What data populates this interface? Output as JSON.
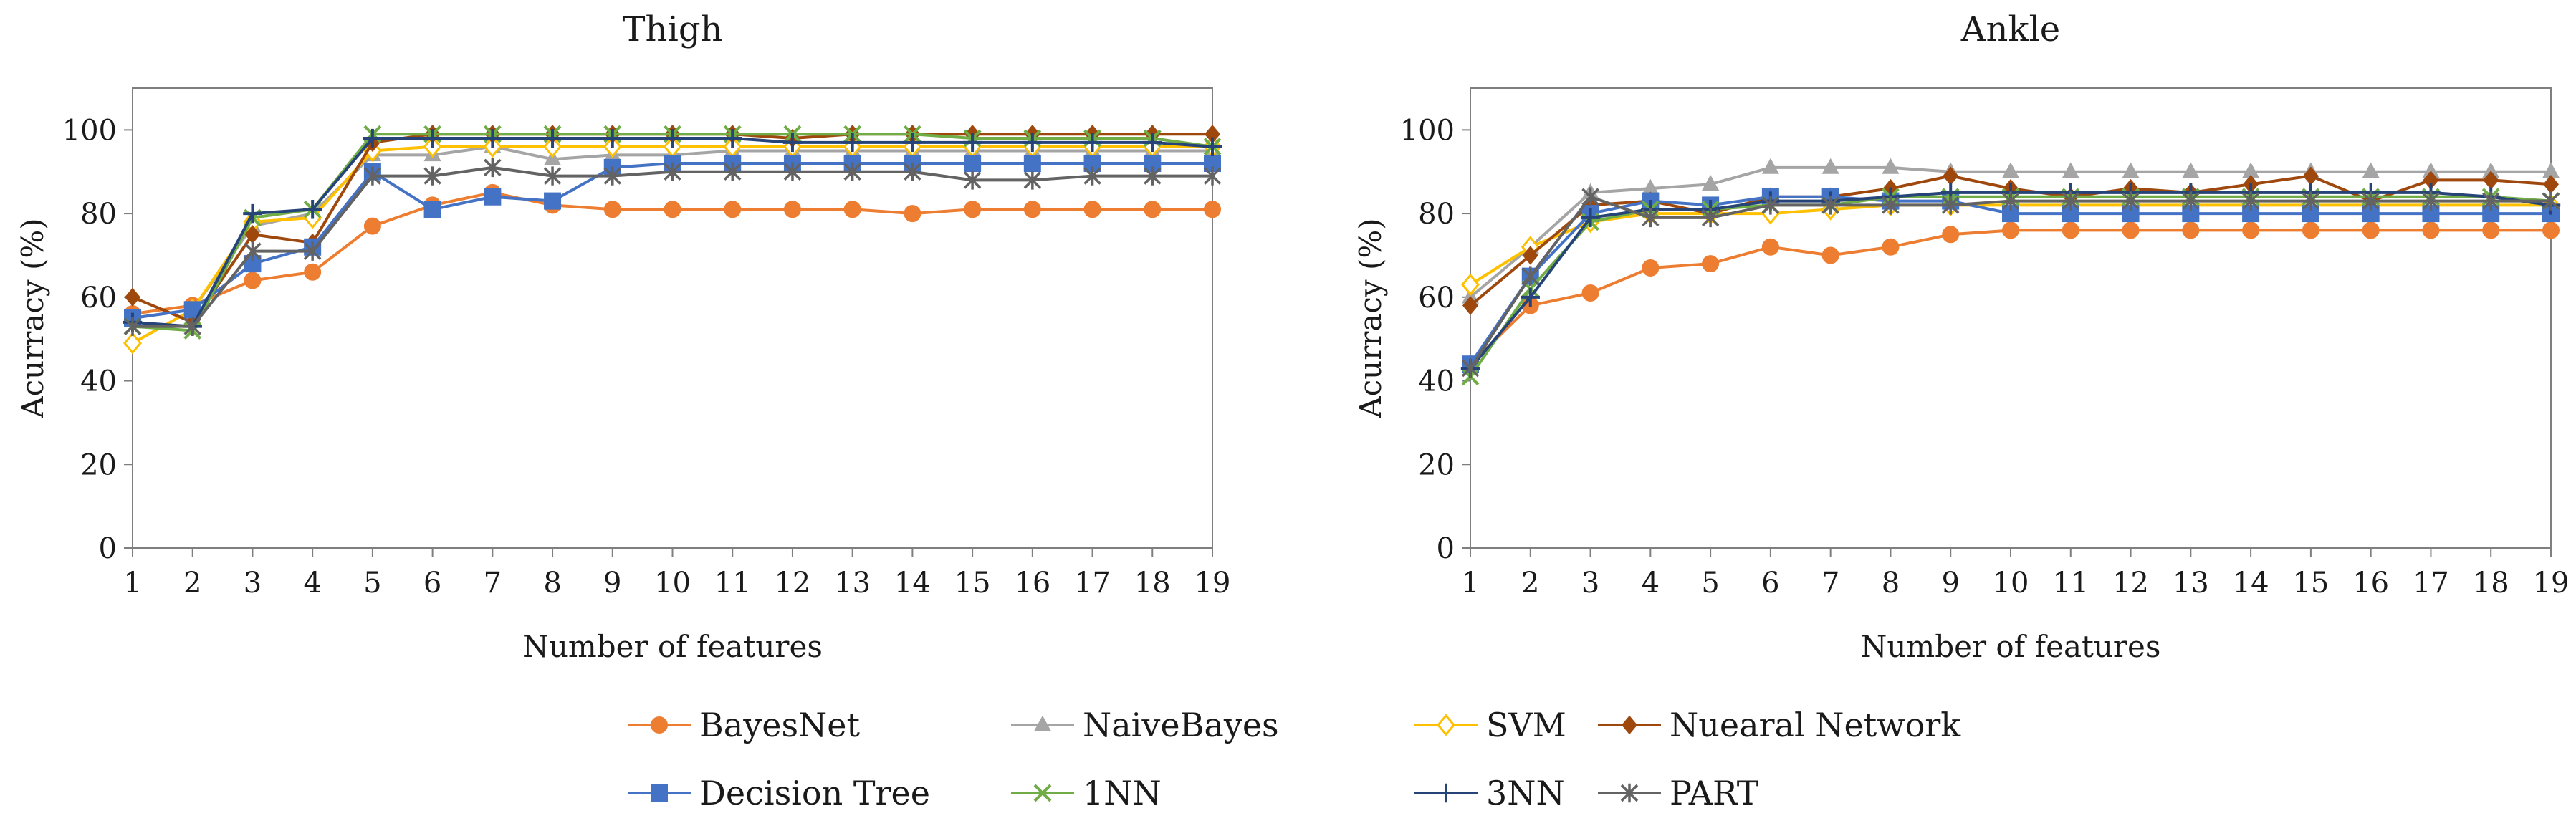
{
  "chart_data": [
    {
      "type": "line",
      "title": "Thigh",
      "xlabel": "Number of features",
      "ylabel": "Acurracy (%)",
      "x": [
        1,
        2,
        3,
        4,
        5,
        6,
        7,
        8,
        9,
        10,
        11,
        12,
        13,
        14,
        15,
        16,
        17,
        18,
        19
      ],
      "xlim": [
        1,
        19
      ],
      "ylim": [
        0,
        110
      ],
      "yticks": [
        0,
        20,
        40,
        60,
        80,
        100
      ],
      "series": [
        {
          "name": "BayesNet",
          "values": [
            56,
            58,
            64,
            66,
            77,
            82,
            85,
            82,
            81,
            81,
            81,
            81,
            81,
            80,
            81,
            81,
            81,
            81,
            81
          ]
        },
        {
          "name": "NaiveBayes",
          "values": [
            55,
            57,
            77,
            80,
            94,
            94,
            96,
            93,
            94,
            94,
            95,
            95,
            95,
            95,
            95,
            95,
            95,
            95,
            95
          ]
        },
        {
          "name": "SVM",
          "values": [
            49,
            57,
            78,
            79,
            95,
            96,
            96,
            96,
            96,
            96,
            96,
            96,
            96,
            96,
            96,
            96,
            96,
            96,
            96
          ]
        },
        {
          "name": "Nuearal Network",
          "values": [
            60,
            54,
            75,
            73,
            97,
            99,
            99,
            99,
            99,
            99,
            99,
            98,
            99,
            99,
            99,
            99,
            99,
            99,
            99
          ]
        },
        {
          "name": "Decision Tree",
          "values": [
            55,
            57,
            68,
            72,
            90,
            81,
            84,
            83,
            91,
            92,
            92,
            92,
            92,
            92,
            92,
            92,
            92,
            92,
            92
          ]
        },
        {
          "name": "1NN",
          "values": [
            53,
            52,
            79,
            81,
            99,
            99,
            99,
            99,
            99,
            99,
            99,
            99,
            99,
            99,
            98,
            98,
            98,
            98,
            96
          ]
        },
        {
          "name": "3NN",
          "values": [
            54,
            53,
            80,
            81,
            98,
            98,
            98,
            98,
            98,
            98,
            98,
            97,
            97,
            97,
            97,
            97,
            97,
            97,
            96
          ]
        },
        {
          "name": "PART",
          "values": [
            53,
            53,
            71,
            71,
            89,
            89,
            91,
            89,
            89,
            90,
            90,
            90,
            90,
            90,
            88,
            88,
            89,
            89,
            89
          ]
        }
      ]
    },
    {
      "type": "line",
      "title": "Ankle",
      "xlabel": "Number of features",
      "ylabel": "Acurracy (%)",
      "x": [
        1,
        2,
        3,
        4,
        5,
        6,
        7,
        8,
        9,
        10,
        11,
        12,
        13,
        14,
        15,
        16,
        17,
        18,
        19
      ],
      "xlim": [
        1,
        19
      ],
      "ylim": [
        0,
        110
      ],
      "yticks": [
        0,
        20,
        40,
        60,
        80,
        100
      ],
      "series": [
        {
          "name": "BayesNet",
          "values": [
            44,
            58,
            61,
            67,
            68,
            72,
            70,
            72,
            75,
            76,
            76,
            76,
            76,
            76,
            76,
            76,
            76,
            76,
            76
          ]
        },
        {
          "name": "NaiveBayes",
          "values": [
            60,
            72,
            85,
            86,
            87,
            91,
            91,
            91,
            90,
            90,
            90,
            90,
            90,
            90,
            90,
            90,
            90,
            90,
            90
          ]
        },
        {
          "name": "SVM",
          "values": [
            63,
            72,
            78,
            80,
            80,
            80,
            81,
            82,
            82,
            82,
            82,
            82,
            82,
            82,
            82,
            82,
            82,
            82,
            82
          ]
        },
        {
          "name": "Nuearal Network",
          "values": [
            58,
            70,
            82,
            83,
            80,
            84,
            84,
            86,
            89,
            86,
            84,
            86,
            85,
            87,
            89,
            83,
            88,
            88,
            87
          ]
        },
        {
          "name": "Decision Tree",
          "values": [
            44,
            65,
            80,
            83,
            82,
            84,
            84,
            83,
            83,
            80,
            80,
            80,
            80,
            80,
            80,
            80,
            80,
            80,
            80
          ]
        },
        {
          "name": "1NN",
          "values": [
            41,
            62,
            78,
            81,
            81,
            82,
            82,
            84,
            84,
            84,
            84,
            84,
            84,
            84,
            84,
            84,
            84,
            84,
            83
          ]
        },
        {
          "name": "3NN",
          "values": [
            43,
            60,
            79,
            81,
            81,
            83,
            83,
            84,
            85,
            85,
            85,
            85,
            85,
            85,
            85,
            85,
            85,
            84,
            82
          ]
        },
        {
          "name": "PART",
          "values": [
            43,
            65,
            84,
            79,
            79,
            82,
            82,
            82,
            82,
            83,
            83,
            83,
            83,
            83,
            83,
            83,
            83,
            83,
            83
          ]
        }
      ]
    }
  ],
  "legend": [
    {
      "name": "BayesNet",
      "color": "#ed7d31",
      "marker": "circle"
    },
    {
      "name": "NaiveBayes",
      "color": "#a5a5a5",
      "marker": "triangle"
    },
    {
      "name": "SVM",
      "color": "#ffc000",
      "marker": "diamond-open"
    },
    {
      "name": "Nuearal Network",
      "color": "#9e480e",
      "marker": "diamond"
    },
    {
      "name": "Decision Tree",
      "color": "#4472c4",
      "marker": "square"
    },
    {
      "name": "1NN",
      "color": "#70ad47",
      "marker": "x"
    },
    {
      "name": "3NN",
      "color": "#264478",
      "marker": "plus"
    },
    {
      "name": "PART",
      "color": "#636363",
      "marker": "star"
    }
  ]
}
